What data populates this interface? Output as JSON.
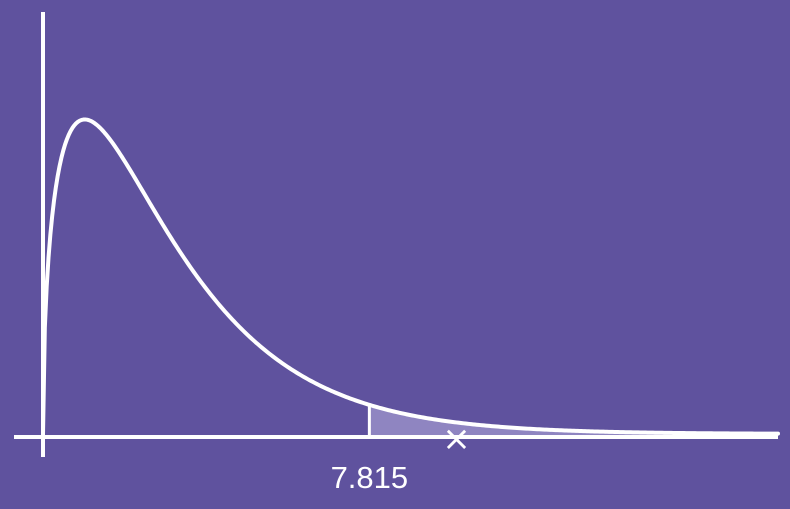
{
  "colors": {
    "background": "#5F529E",
    "curve": "#FFFFFF",
    "shade": "#8F85C1",
    "axis": "#FFFFFF",
    "marker": "#FFFFFF"
  },
  "chart_data": {
    "type": "line",
    "distribution": "chi-square",
    "degrees_of_freedom": 3,
    "critical_value": 7.815,
    "critical_value_label": "7.815",
    "shaded_region": "right-tail",
    "marker": {
      "symbol": "×",
      "x": 9.9
    },
    "xlim": [
      0,
      17.6
    ],
    "ylim": [
      0,
      0.27
    ],
    "grid": false,
    "legend": "none",
    "title": "",
    "xlabel": "",
    "ylabel": ""
  }
}
